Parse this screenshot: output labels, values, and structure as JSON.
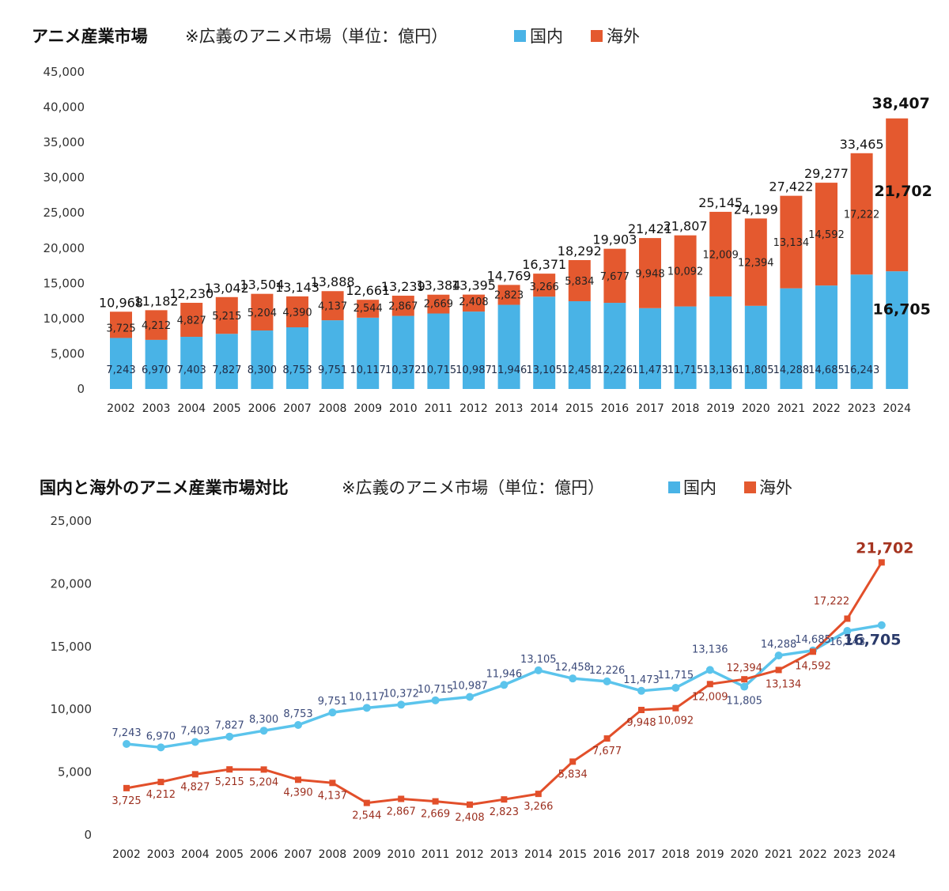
{
  "colors": {
    "domestic": "#49b3e6",
    "overseas": "#e4592f",
    "domestic_line": "#5bc4ec",
    "overseas_line": "#e24f2a"
  },
  "chart_data": [
    {
      "type": "bar",
      "stacked": true,
      "title": "アニメ産業市場",
      "note": "※広義のアニメ市場（単位：億円）",
      "legend": [
        "国内",
        "海外"
      ],
      "categories": [
        "2002",
        "2003",
        "2004",
        "2005",
        "2006",
        "2007",
        "2008",
        "2009",
        "2010",
        "2011",
        "2012",
        "2013",
        "2014",
        "2015",
        "2016",
        "2017",
        "2018",
        "2019",
        "2020",
        "2021",
        "2022",
        "2023",
        "2024"
      ],
      "series": [
        {
          "name": "国内",
          "values": [
            7243,
            6970,
            7403,
            7827,
            8300,
            8753,
            9751,
            10117,
            10372,
            10715,
            10987,
            11946,
            13105,
            12458,
            12226,
            11473,
            11715,
            13136,
            11805,
            14288,
            14685,
            16243,
            16705
          ]
        },
        {
          "name": "海外",
          "values": [
            3725,
            4212,
            4827,
            5215,
            5204,
            4390,
            4137,
            2544,
            2867,
            2669,
            2408,
            2823,
            3266,
            5834,
            7677,
            9948,
            10092,
            12009,
            12394,
            13134,
            14592,
            17222,
            21702
          ]
        }
      ],
      "totals": [
        10968,
        11182,
        12230,
        13042,
        13504,
        13143,
        13888,
        12661,
        13239,
        13384,
        13395,
        14769,
        16371,
        18292,
        19903,
        21421,
        21807,
        25145,
        24199,
        27422,
        29277,
        33465,
        38407
      ],
      "yticks": [
        "0",
        "5,000",
        "10,000",
        "15,000",
        "20,000",
        "25,000",
        "30,000",
        "35,000",
        "40,000",
        "45,000"
      ],
      "ylim": [
        0,
        45000
      ]
    },
    {
      "type": "line",
      "title": "国内と海外のアニメ産業市場対比",
      "note": "※広義のアニメ市場（単位：億円）",
      "legend": [
        "国内",
        "海外"
      ],
      "categories": [
        "2002",
        "2003",
        "2004",
        "2005",
        "2006",
        "2007",
        "2008",
        "2009",
        "2010",
        "2011",
        "2012",
        "2013",
        "2014",
        "2015",
        "2016",
        "2017",
        "2018",
        "2019",
        "2020",
        "2021",
        "2022",
        "2023",
        "2024"
      ],
      "series": [
        {
          "name": "国内",
          "values": [
            7243,
            6970,
            7403,
            7827,
            8300,
            8753,
            9751,
            10117,
            10372,
            10715,
            10987,
            11946,
            13105,
            12458,
            12226,
            11473,
            11715,
            13136,
            11805,
            14288,
            14685,
            16243,
            16705
          ]
        },
        {
          "name": "海外",
          "values": [
            3725,
            4212,
            4827,
            5215,
            5204,
            4390,
            4137,
            2544,
            2867,
            2669,
            2408,
            2823,
            3266,
            5834,
            7677,
            9948,
            10092,
            12009,
            12394,
            13134,
            14592,
            17222,
            21702
          ]
        }
      ],
      "yticks": [
        "0",
        "5,000",
        "10,000",
        "15,000",
        "20,000",
        "25,000"
      ],
      "ylim": [
        0,
        25000
      ]
    }
  ]
}
